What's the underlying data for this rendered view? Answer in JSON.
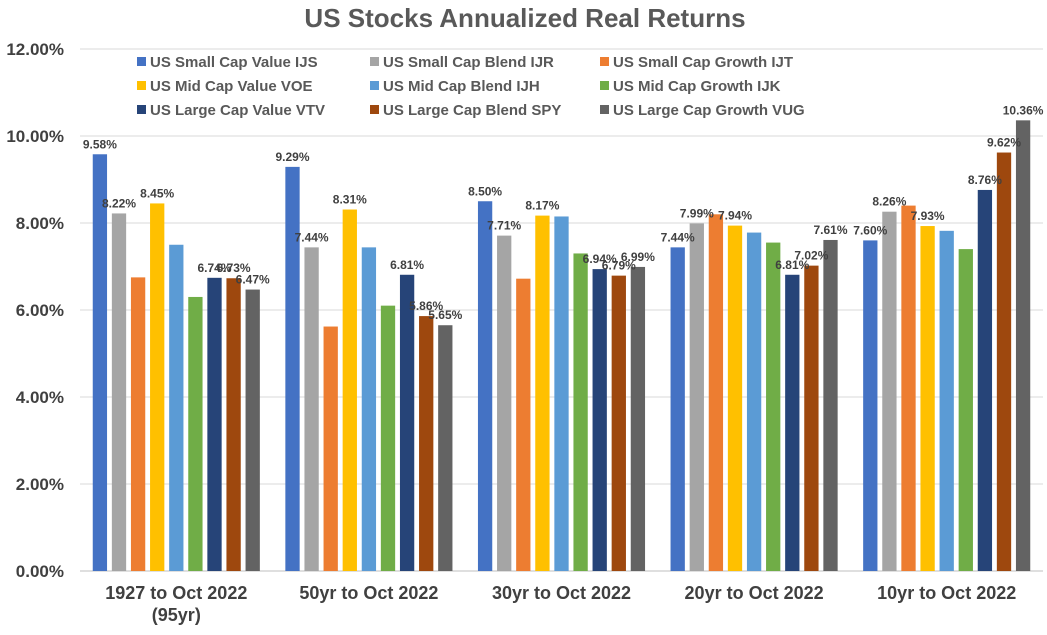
{
  "chart_data": {
    "type": "bar",
    "title": "US Stocks Annualized Real Returns",
    "xlabel": "",
    "ylabel": "",
    "ylim": [
      0,
      12
    ],
    "y_ticks": [
      "0.00%",
      "2.00%",
      "4.00%",
      "6.00%",
      "8.00%",
      "10.00%",
      "12.00%"
    ],
    "y_tick_values": [
      0,
      2,
      4,
      6,
      8,
      10,
      12
    ],
    "grid": true,
    "legend_position": "top",
    "categories": [
      [
        "1927 to Oct 2022",
        "(95yr)"
      ],
      [
        "50yr to Oct 2022"
      ],
      [
        "30yr to Oct 2022"
      ],
      [
        "20yr to Oct 2022"
      ],
      [
        "10yr to Oct 2022"
      ]
    ],
    "series": [
      {
        "name": "US Small Cap Value IJS",
        "color": "#4472C4",
        "values": [
          9.58,
          9.29,
          8.5,
          7.44,
          7.6
        ],
        "labels": [
          "9.58%",
          "9.29%",
          "8.50%",
          "7.44%",
          "7.60%"
        ]
      },
      {
        "name": "US Small Cap Blend IJR",
        "color": "#A5A5A5",
        "values": [
          8.22,
          7.44,
          7.71,
          7.99,
          8.26
        ],
        "labels": [
          "8.22%",
          "7.44%",
          "7.71%",
          "7.99%",
          "8.26%"
        ]
      },
      {
        "name": "US Small Cap Growth IJT",
        "color": "#ED7D31",
        "values": [
          6.75,
          5.62,
          6.72,
          8.2,
          8.4
        ],
        "labels": [
          "",
          "",
          "",
          "",
          ""
        ]
      },
      {
        "name": "US Mid Cap Value VOE",
        "color": "#FFC000",
        "values": [
          8.45,
          8.31,
          8.17,
          7.94,
          7.93
        ],
        "labels": [
          "8.45%",
          "8.31%",
          "8.17%",
          "7.94%",
          "7.93%"
        ]
      },
      {
        "name": "US Mid Cap Blend IJH",
        "color": "#5B9BD5",
        "values": [
          7.5,
          7.44,
          8.15,
          7.78,
          7.82
        ],
        "labels": [
          "",
          "",
          "",
          "",
          ""
        ]
      },
      {
        "name": "US Mid Cap Growth IJK",
        "color": "#70AD47",
        "values": [
          6.3,
          6.1,
          7.3,
          7.55,
          7.4
        ],
        "labels": [
          "",
          "",
          "",
          "",
          ""
        ]
      },
      {
        "name": "US Large Cap Value VTV",
        "color": "#264478",
        "values": [
          6.74,
          6.81,
          6.94,
          6.81,
          8.76
        ],
        "labels": [
          "6.74%",
          "6.81%",
          "6.94%",
          "6.81%",
          "8.76%"
        ]
      },
      {
        "name": "US Large Cap Blend SPY",
        "color": "#9E480E",
        "values": [
          6.73,
          5.86,
          6.79,
          7.02,
          9.62
        ],
        "labels": [
          "6.73%",
          "5.86%",
          "6.79%",
          "7.02%",
          "9.62%"
        ]
      },
      {
        "name": "US Large Cap Growth VUG",
        "color": "#636363",
        "values": [
          6.47,
          5.65,
          6.99,
          7.61,
          10.36
        ],
        "labels": [
          "6.47%",
          "5.65%",
          "6.99%",
          "7.61%",
          "10.36%"
        ]
      }
    ]
  }
}
